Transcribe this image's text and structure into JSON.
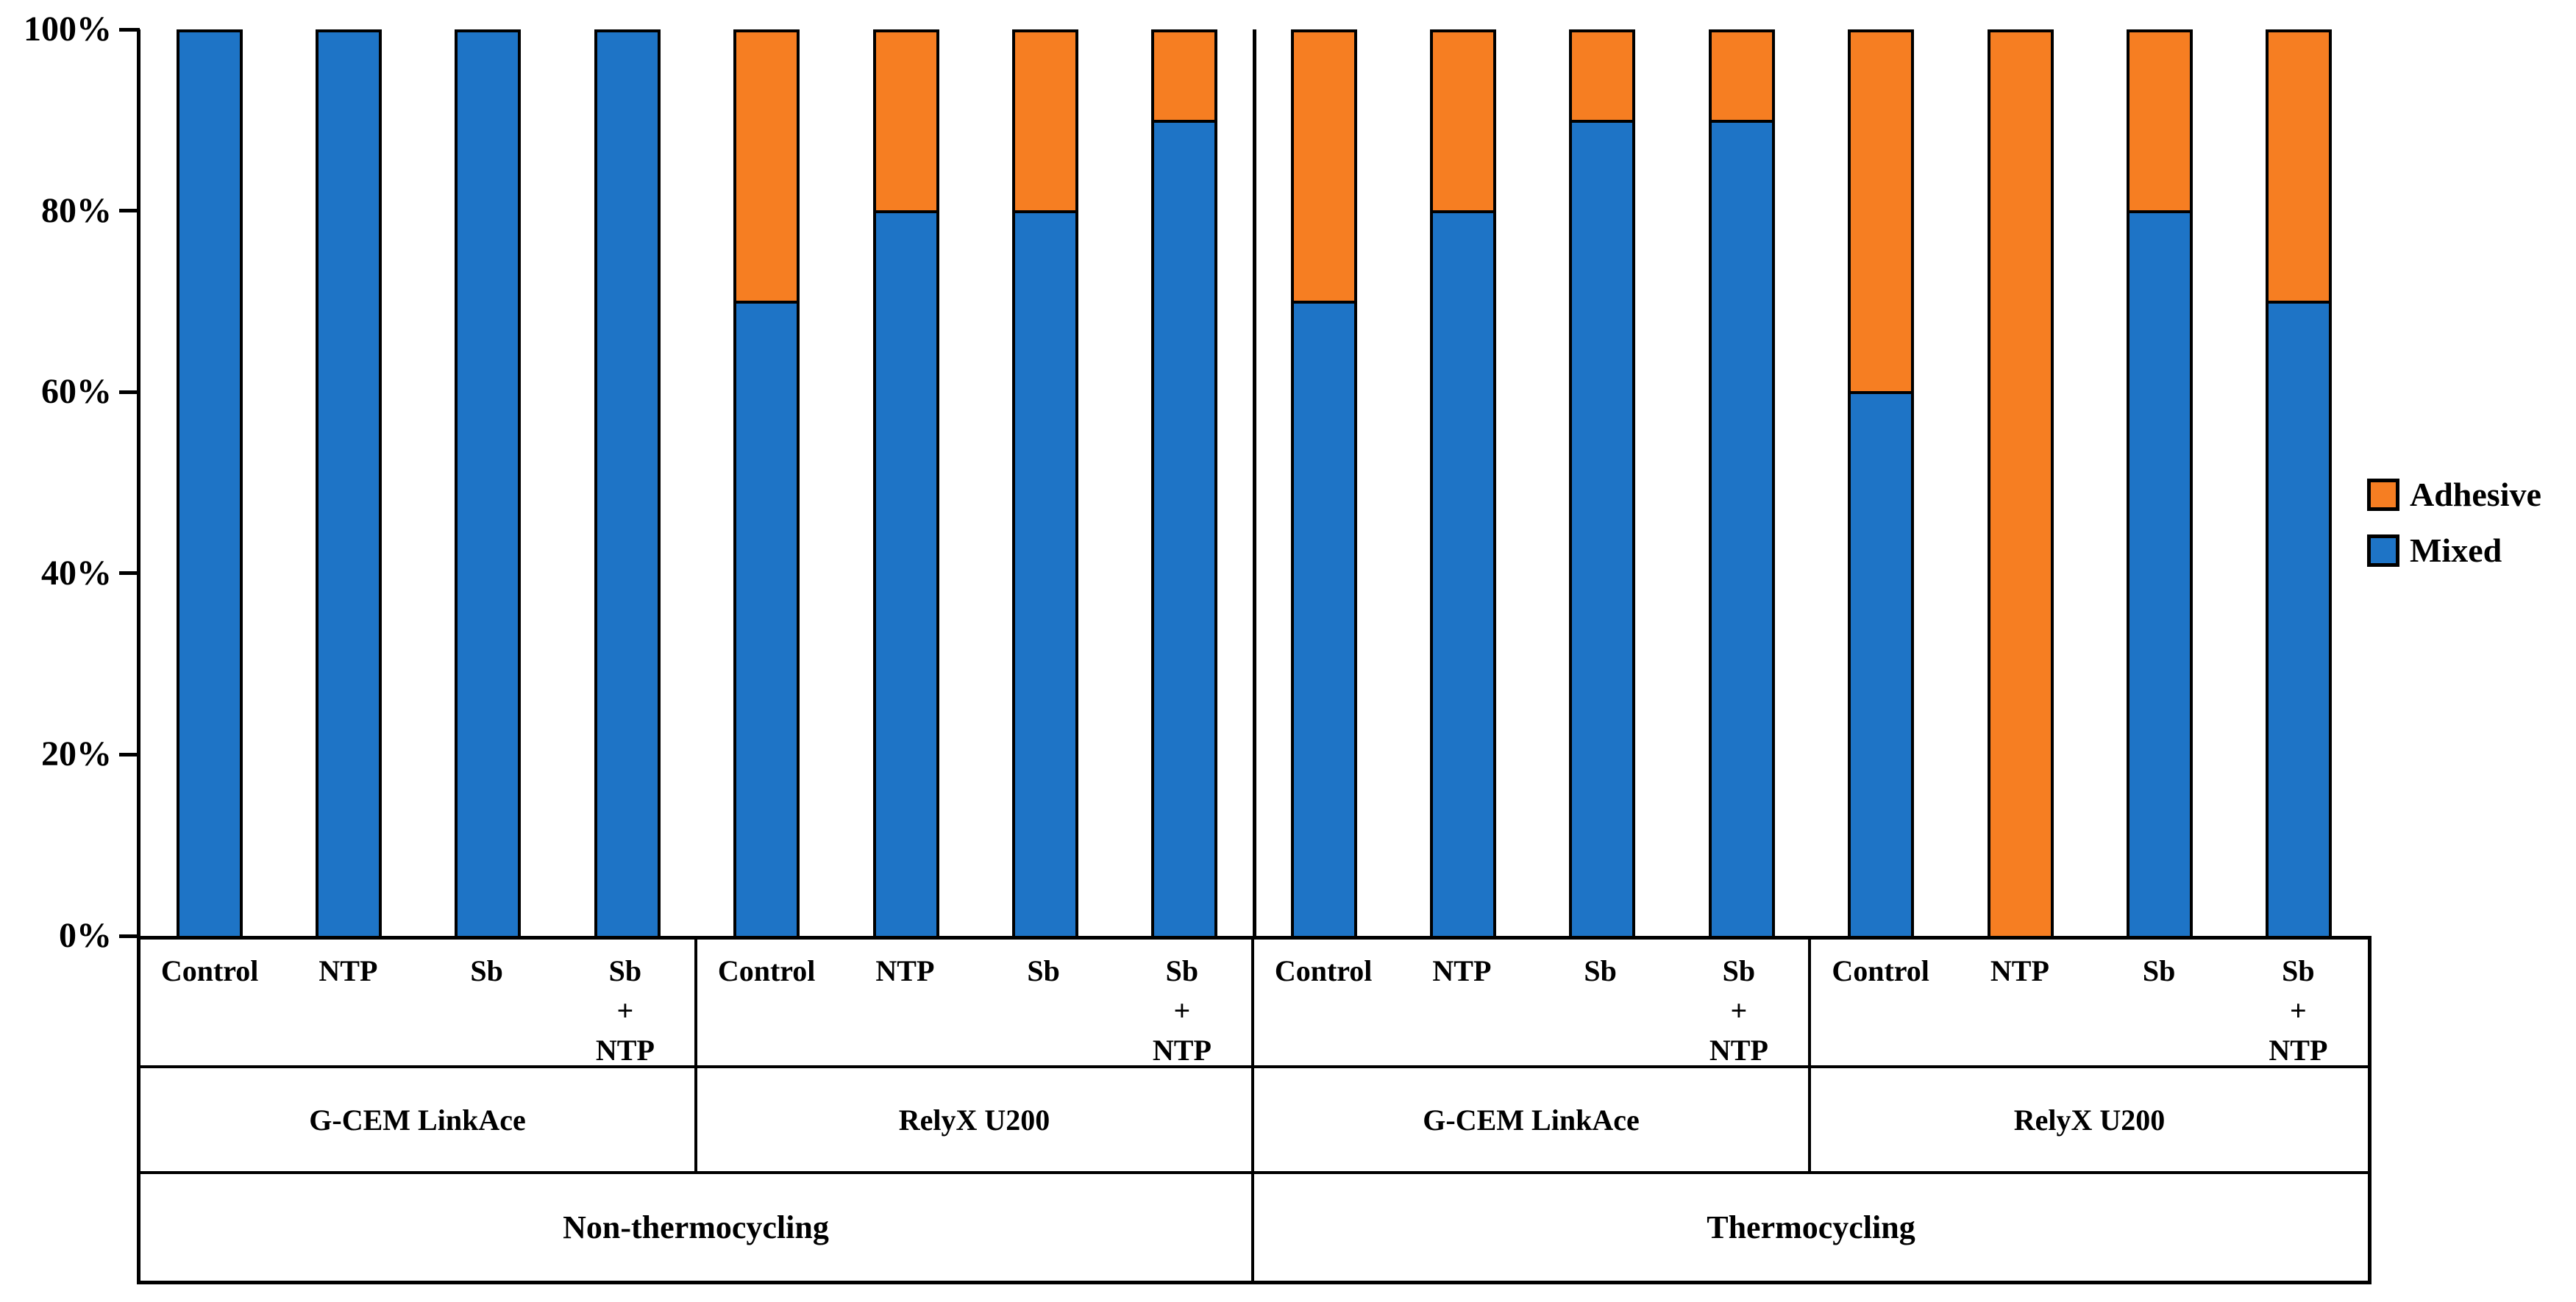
{
  "chart_data": {
    "type": "bar",
    "stacked": true,
    "orientation": "vertical",
    "title": "",
    "xlabel": "",
    "ylabel": "",
    "ylim": [
      0,
      100
    ],
    "yticks": [
      0,
      20,
      40,
      60,
      80,
      100
    ],
    "ytick_labels": [
      "0%",
      "20%",
      "40%",
      "60%",
      "80%",
      "100%"
    ],
    "grid": false,
    "legend_position": "right",
    "colors": {
      "mixed_blue": "#1E74C6",
      "adhesive_orange": "#F67E22",
      "axis_black": "#000000"
    },
    "legend": [
      {
        "name": "Adhesive",
        "color": "#F67E22"
      },
      {
        "name": "Mixed",
        "color": "#1E74C6"
      }
    ],
    "categories": [
      "Control",
      "NTP",
      "Sb",
      "Sb + NTP",
      "Control",
      "NTP",
      "Sb",
      "Sb + NTP",
      "Control",
      "NTP",
      "Sb",
      "Sb + NTP",
      "Control",
      "NTP",
      "Sb",
      "Sb + NTP"
    ],
    "series": [
      {
        "name": "Mixed",
        "color": "#1E74C6",
        "values": [
          100,
          100,
          100,
          100,
          70,
          80,
          80,
          90,
          70,
          80,
          90,
          90,
          60,
          0,
          80,
          70
        ]
      },
      {
        "name": "Adhesive",
        "color": "#F67E22",
        "values": [
          0,
          0,
          0,
          0,
          30,
          20,
          20,
          10,
          30,
          20,
          10,
          10,
          40,
          100,
          20,
          30
        ]
      }
    ],
    "treatment_labels_per_group": [
      {
        "lines": [
          "Control"
        ]
      },
      {
        "lines": [
          "NTP"
        ]
      },
      {
        "lines": [
          "Sb"
        ]
      },
      {
        "lines": [
          "Sb",
          "+",
          "NTP"
        ]
      }
    ],
    "cement_groups": [
      "G-CEM LinkAce",
      "RelyX U200",
      "G-CEM LinkAce",
      "RelyX U200"
    ],
    "condition_groups": [
      "Non-thermocycling",
      "Thermocycling"
    ]
  }
}
